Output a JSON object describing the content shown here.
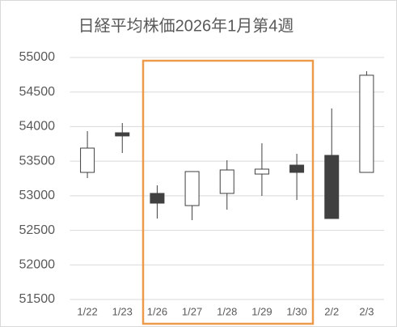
{
  "chart_data": {
    "type": "candlestick",
    "title": "日経平均株価2026年1月第4週",
    "categories": [
      "1/22",
      "1/23",
      "1/26",
      "1/27",
      "1/28",
      "1/29",
      "1/30",
      "2/2",
      "2/3"
    ],
    "open": [
      53338,
      53911,
      53034,
      52858,
      53034,
      53314,
      53443,
      53584,
      53338
    ],
    "high": [
      53935,
      54052,
      53150,
      53350,
      53513,
      53759,
      53607,
      54263,
      54801
    ],
    "low": [
      53256,
      53619,
      52671,
      52647,
      52799,
      52998,
      52940,
      52671,
      53338
    ],
    "close": [
      53689,
      53865,
      52893,
      53350,
      53373,
      53385,
      53338,
      52671,
      54743
    ],
    "up_color": "#ffffff",
    "down_color": "#404040",
    "ylim": [
      51500,
      55000
    ],
    "yticks": [
      51500,
      52000,
      52500,
      53000,
      53500,
      54000,
      54500,
      55000
    ],
    "grid": true
  }
}
